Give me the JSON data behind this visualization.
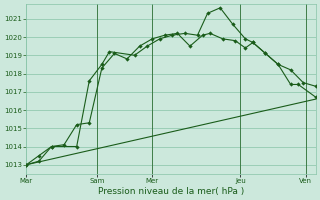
{
  "xlabel": "Pression niveau de la mer( hPa )",
  "ylim": [
    1012.5,
    1021.8
  ],
  "yticks": [
    1013,
    1014,
    1015,
    1016,
    1017,
    1018,
    1019,
    1020,
    1021
  ],
  "bg_color": "#cce8dc",
  "grid_color": "#88c4a8",
  "line_color": "#1a5c1a",
  "line1_x": [
    0,
    0.5,
    1.0,
    2.0,
    2.5,
    3.0,
    3.3,
    4.3,
    4.8,
    5.3,
    5.8,
    6.3,
    6.8,
    7.2,
    7.7,
    8.2,
    8.7,
    9.0,
    9.5,
    10.0,
    10.5,
    10.8,
    11.5
  ],
  "line1_y": [
    1013.0,
    1013.2,
    1014.0,
    1014.0,
    1017.6,
    1018.5,
    1019.2,
    1019.0,
    1019.5,
    1019.9,
    1020.1,
    1020.2,
    1020.1,
    1021.3,
    1021.6,
    1020.7,
    1019.9,
    1019.7,
    1019.1,
    1018.5,
    1017.4,
    1017.4,
    1016.7
  ],
  "line2_x": [
    0,
    0.5,
    1.0,
    1.5,
    2.0,
    2.5,
    3.0,
    3.5,
    4.0,
    4.5,
    5.0,
    5.5,
    6.0,
    6.5,
    7.0,
    7.3,
    7.8,
    8.3,
    8.7,
    9.0,
    9.5,
    10.0,
    10.5,
    11.0,
    11.5
  ],
  "line2_y": [
    1013.0,
    1013.5,
    1014.0,
    1014.1,
    1015.2,
    1015.3,
    1018.3,
    1019.1,
    1018.8,
    1019.5,
    1019.9,
    1020.1,
    1020.2,
    1019.5,
    1020.1,
    1020.2,
    1019.9,
    1019.8,
    1019.4,
    1019.7,
    1019.1,
    1018.5,
    1018.2,
    1017.5,
    1017.3
  ],
  "line3_x": [
    0,
    11.5
  ],
  "line3_y": [
    1013.0,
    1016.6
  ],
  "vlines_x": [
    2.8,
    5.0,
    8.5,
    11.1
  ],
  "xtick_positions": [
    0,
    2.8,
    5.0,
    8.5,
    11.1
  ],
  "xtick_labels": [
    "Mar",
    "Sam",
    "Mer",
    "Jeu",
    "Ven"
  ],
  "xlim": [
    0,
    11.5
  ]
}
